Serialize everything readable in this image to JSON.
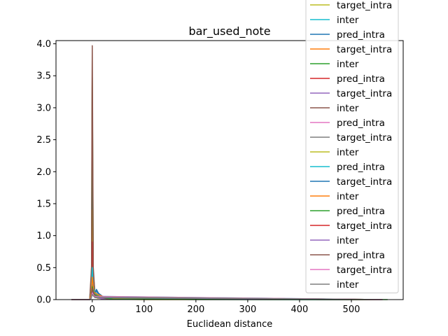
{
  "chart_data": {
    "type": "line",
    "title": "bar_used_note",
    "xlabel": "Euclidean distance",
    "ylabel": "",
    "xlim": [
      -70,
      600
    ],
    "ylim": [
      0,
      4.05
    ],
    "xticks": [
      0,
      100,
      200,
      300,
      400,
      500
    ],
    "yticks": [
      0.0,
      0.5,
      1.0,
      1.5,
      2.0,
      2.5,
      3.0,
      3.5,
      4.0
    ],
    "grid": false,
    "legend_position": "top-right",
    "series": [
      {
        "name": "target_intra",
        "color": "#bcbd22",
        "points": [
          [
            -40,
            0
          ],
          [
            -5,
            0
          ],
          [
            -2,
            0.15
          ],
          [
            -0.5,
            1.2
          ],
          [
            0,
            1.8
          ],
          [
            0.5,
            1.1
          ],
          [
            2,
            0.2
          ],
          [
            5,
            0.05
          ],
          [
            10,
            0.02
          ],
          [
            40,
            0.005
          ],
          [
            100,
            0
          ],
          [
            560,
            0
          ]
        ]
      },
      {
        "name": "inter",
        "color": "#17becf",
        "points": [
          [
            -40,
            0
          ],
          [
            -5,
            0
          ],
          [
            -2,
            0.1
          ],
          [
            0,
            0.6
          ],
          [
            2,
            0.3
          ],
          [
            5,
            0.12
          ],
          [
            10,
            0.08
          ],
          [
            20,
            0.04
          ],
          [
            40,
            0.02
          ],
          [
            80,
            0.008
          ],
          [
            150,
            0.003
          ],
          [
            560,
            0
          ]
        ]
      },
      {
        "name": "pred_intra",
        "color": "#1f77b4",
        "points": [
          [
            -40,
            0
          ],
          [
            -5,
            0
          ],
          [
            -1.5,
            0.3
          ],
          [
            -0.5,
            2.2
          ],
          [
            0,
            2.8
          ],
          [
            0.5,
            2.1
          ],
          [
            2,
            0.3
          ],
          [
            5,
            0.1
          ],
          [
            8,
            0.16
          ],
          [
            12,
            0.1
          ],
          [
            20,
            0.05
          ],
          [
            40,
            0.02
          ],
          [
            100,
            0.005
          ],
          [
            200,
            0.002
          ],
          [
            560,
            0
          ]
        ]
      },
      {
        "name": "target_intra",
        "color": "#ff7f0e",
        "points": [
          [
            -40,
            0
          ],
          [
            -5,
            0
          ],
          [
            -2,
            0.2
          ],
          [
            -0.5,
            1.0
          ],
          [
            0,
            1.4
          ],
          [
            0.5,
            1.0
          ],
          [
            2,
            0.3
          ],
          [
            5,
            0.1
          ],
          [
            10,
            0.04
          ],
          [
            30,
            0.01
          ],
          [
            560,
            0
          ]
        ]
      },
      {
        "name": "inter",
        "color": "#2ca02c",
        "points": [
          [
            -40,
            0
          ],
          [
            -5,
            0
          ],
          [
            -1.5,
            0.4
          ],
          [
            -0.5,
            2.9
          ],
          [
            0,
            3.47
          ],
          [
            0.5,
            2.8
          ],
          [
            2,
            0.4
          ],
          [
            5,
            0.12
          ],
          [
            10,
            0.06
          ],
          [
            30,
            0.02
          ],
          [
            100,
            0.004
          ],
          [
            560,
            0
          ]
        ]
      },
      {
        "name": "pred_intra",
        "color": "#d62728",
        "points": [
          [
            -40,
            0
          ],
          [
            -5,
            0
          ],
          [
            -2,
            0.2
          ],
          [
            0,
            0.9
          ],
          [
            2,
            0.2
          ],
          [
            5,
            0.05
          ],
          [
            20,
            0.01
          ],
          [
            560,
            0
          ]
        ]
      },
      {
        "name": "target_intra",
        "color": "#9467bd",
        "points": [
          [
            -40,
            0
          ],
          [
            -5,
            0
          ],
          [
            -2,
            0.1
          ],
          [
            0,
            0.5
          ],
          [
            2,
            0.12
          ],
          [
            5,
            0.04
          ],
          [
            20,
            0.01
          ],
          [
            560,
            0
          ]
        ]
      },
      {
        "name": "inter",
        "color": "#8c564b",
        "points": [
          [
            -40,
            0
          ],
          [
            -5,
            0
          ],
          [
            -1.5,
            0.5
          ],
          [
            -0.5,
            3.3
          ],
          [
            0,
            3.97
          ],
          [
            0.5,
            3.2
          ],
          [
            2,
            0.5
          ],
          [
            5,
            0.1
          ],
          [
            10,
            0.05
          ],
          [
            30,
            0.01
          ],
          [
            560,
            0
          ]
        ]
      },
      {
        "name": "pred_intra",
        "color": "#e377c2",
        "points": [
          [
            -40,
            0
          ],
          [
            -5,
            0
          ],
          [
            -2,
            0.1
          ],
          [
            0,
            0.4
          ],
          [
            2,
            0.1
          ],
          [
            5,
            0.03
          ],
          [
            560,
            0
          ]
        ]
      },
      {
        "name": "target_intra",
        "color": "#7f7f7f",
        "points": [
          [
            -40,
            0
          ],
          [
            -5,
            0
          ],
          [
            -2,
            0.05
          ],
          [
            0,
            0.3
          ],
          [
            2,
            0.08
          ],
          [
            6,
            0.03
          ],
          [
            560,
            0
          ]
        ]
      },
      {
        "name": "inter",
        "color": "#bcbd22",
        "points": [
          [
            -40,
            0
          ],
          [
            -5,
            0
          ],
          [
            -2,
            0.05
          ],
          [
            0,
            0.25
          ],
          [
            3,
            0.07
          ],
          [
            8,
            0.04
          ],
          [
            560,
            0
          ]
        ]
      },
      {
        "name": "pred_intra",
        "color": "#17becf",
        "points": [
          [
            -40,
            0
          ],
          [
            -5,
            0
          ],
          [
            -2,
            0.1
          ],
          [
            0,
            0.5
          ],
          [
            2,
            0.2
          ],
          [
            6,
            0.08
          ],
          [
            12,
            0.05
          ],
          [
            560,
            0
          ]
        ]
      },
      {
        "name": "target_intra",
        "color": "#1f77b4",
        "points": [
          [
            -40,
            0
          ],
          [
            -5,
            0
          ],
          [
            -2,
            0.05
          ],
          [
            0,
            0.3
          ],
          [
            3,
            0.1
          ],
          [
            8,
            0.13
          ],
          [
            15,
            0.06
          ],
          [
            30,
            0.03
          ],
          [
            60,
            0.01
          ],
          [
            560,
            0
          ]
        ]
      },
      {
        "name": "inter",
        "color": "#ff7f0e",
        "points": [
          [
            -40,
            0
          ],
          [
            -5,
            0
          ],
          [
            -2,
            0.1
          ],
          [
            0,
            0.35
          ],
          [
            3,
            0.12
          ],
          [
            8,
            0.09
          ],
          [
            20,
            0.05
          ],
          [
            40,
            0.02
          ],
          [
            560,
            0
          ]
        ]
      },
      {
        "name": "pred_intra",
        "color": "#2ca02c",
        "points": [
          [
            -40,
            0
          ],
          [
            -5,
            0
          ],
          [
            -2,
            0.05
          ],
          [
            0,
            0.2
          ],
          [
            4,
            0.08
          ],
          [
            10,
            0.06
          ],
          [
            20,
            0.03
          ],
          [
            40,
            0.01
          ],
          [
            570,
            0
          ]
        ]
      },
      {
        "name": "target_intra",
        "color": "#d62728",
        "points": [
          [
            -40,
            0
          ],
          [
            -5,
            0
          ],
          [
            -2,
            0.04
          ],
          [
            0,
            0.15
          ],
          [
            4,
            0.06
          ],
          [
            10,
            0.04
          ],
          [
            560,
            0
          ]
        ]
      },
      {
        "name": "inter",
        "color": "#9467bd",
        "points": [
          [
            -40,
            0
          ],
          [
            -5,
            0
          ],
          [
            -2,
            0.03
          ],
          [
            0,
            0.12
          ],
          [
            4,
            0.05
          ],
          [
            12,
            0.03
          ],
          [
            560,
            0
          ]
        ]
      },
      {
        "name": "pred_intra",
        "color": "#8c564b",
        "points": [
          [
            -40,
            0
          ],
          [
            -5,
            0
          ],
          [
            -2,
            0.04
          ],
          [
            0,
            0.18
          ],
          [
            4,
            0.07
          ],
          [
            12,
            0.04
          ],
          [
            560,
            0
          ]
        ]
      },
      {
        "name": "target_intra",
        "color": "#e377c2",
        "points": [
          [
            -40,
            0
          ],
          [
            -5,
            0
          ],
          [
            -2,
            0.03
          ],
          [
            0,
            0.1
          ],
          [
            4,
            0.05
          ],
          [
            560,
            0
          ]
        ]
      },
      {
        "name": "inter",
        "color": "#7f7f7f",
        "points": [
          [
            -40,
            0
          ],
          [
            -5,
            0
          ],
          [
            -2,
            0.02
          ],
          [
            0,
            0.08
          ],
          [
            4,
            0.04
          ],
          [
            560,
            0
          ]
        ]
      }
    ]
  }
}
